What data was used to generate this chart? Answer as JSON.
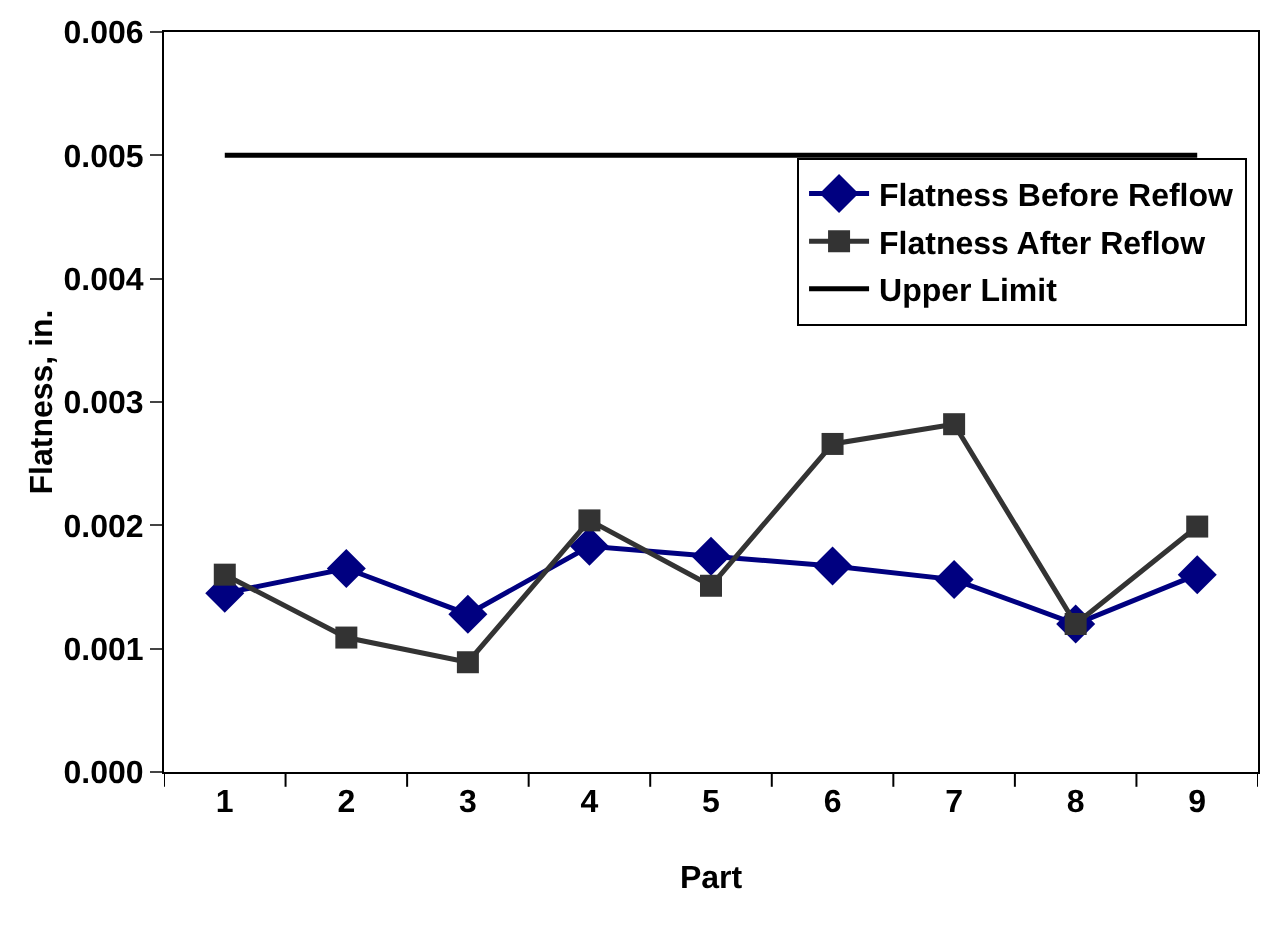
{
  "chart_data": {
    "type": "line",
    "xlabel": "Part",
    "ylabel": "Flatness, in.",
    "categories": [
      "1",
      "2",
      "3",
      "4",
      "5",
      "6",
      "7",
      "8",
      "9"
    ],
    "ylim": [
      0,
      0.006
    ],
    "yticks": [
      {
        "value": 0,
        "label": "0.000"
      },
      {
        "value": 0.001,
        "label": "0.001"
      },
      {
        "value": 0.002,
        "label": "0.002"
      },
      {
        "value": 0.003,
        "label": "0.003"
      },
      {
        "value": 0.004,
        "label": "0.004"
      },
      {
        "value": 0.005,
        "label": "0.005"
      },
      {
        "value": 0.006,
        "label": "0.006"
      }
    ],
    "grid": false,
    "legend": "top right",
    "series": [
      {
        "name": "Flatness Before Reflow",
        "color": "#000080",
        "marker": "diamond",
        "values": [
          0.00145,
          0.00165,
          0.00128,
          0.00183,
          0.00175,
          0.00167,
          0.00156,
          0.0012,
          0.0016
        ]
      },
      {
        "name": "Flatness After Reflow",
        "color": "#333333",
        "marker": "square",
        "values": [
          0.0016,
          0.00109,
          0.00089,
          0.00204,
          0.00151,
          0.00266,
          0.00282,
          0.0012,
          0.00199
        ]
      },
      {
        "name": "Upper Limit",
        "color": "#000000",
        "marker": "none",
        "values": [
          0.005,
          0.005,
          0.005,
          0.005,
          0.005,
          0.005,
          0.005,
          0.005,
          0.005
        ]
      }
    ]
  }
}
